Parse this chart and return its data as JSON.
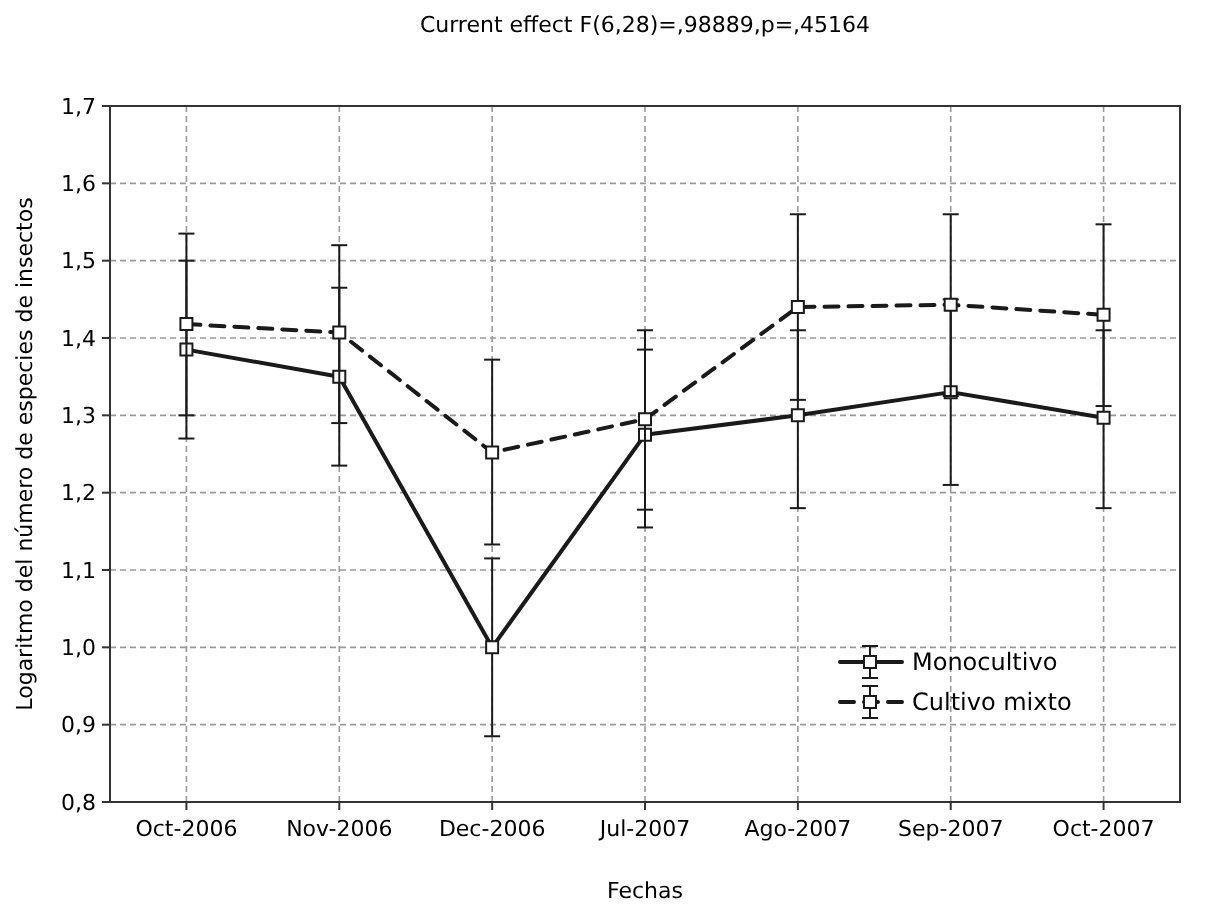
{
  "chart_data": {
    "type": "line",
    "title": "Current effect F(6,28)=,98889,p=,45164",
    "xlabel": "Fechas",
    "ylabel": "Logaritmo del número de especies de insectos",
    "categories": [
      "Oct-2006",
      "Nov-2006",
      "Dec-2006",
      "Jul-2007",
      "Ago-2007",
      "Sep-2007",
      "Oct-2007"
    ],
    "series": [
      {
        "name": "Monocultivo",
        "color": "#1a1a1a",
        "line_style": "solid",
        "values": [
          1.385,
          1.35,
          1.0,
          1.275,
          1.3,
          1.33,
          1.297
        ],
        "errors": [
          [
            1.27,
            1.5
          ],
          [
            1.235,
            1.465
          ],
          [
            0.885,
            1.115
          ],
          [
            1.155,
            1.385
          ],
          [
            1.18,
            1.41
          ],
          [
            1.21,
            1.45
          ],
          [
            1.18,
            1.41
          ]
        ]
      },
      {
        "name": "Cultivo mixto",
        "color": "#1a1a1a",
        "line_style": "dashed",
        "values": [
          1.418,
          1.407,
          1.252,
          1.295,
          1.44,
          1.443,
          1.43
        ],
        "errors": [
          [
            1.3,
            1.535
          ],
          [
            1.29,
            1.52
          ],
          [
            1.133,
            1.372
          ],
          [
            1.178,
            1.41
          ],
          [
            1.32,
            1.56
          ],
          [
            1.325,
            1.56
          ],
          [
            1.312,
            1.547
          ]
        ]
      }
    ],
    "ylim": [
      0.8,
      1.7
    ],
    "yticks": [
      {
        "value": 0.8,
        "label": "0,8"
      },
      {
        "value": 0.9,
        "label": "0,9"
      },
      {
        "value": 1.0,
        "label": "1,0"
      },
      {
        "value": 1.1,
        "label": "1,1"
      },
      {
        "value": 1.2,
        "label": "1,2"
      },
      {
        "value": 1.3,
        "label": "1,3"
      },
      {
        "value": 1.4,
        "label": "1,4"
      },
      {
        "value": 1.5,
        "label": "1,5"
      },
      {
        "value": 1.6,
        "label": "1,6"
      },
      {
        "value": 1.7,
        "label": "1,7"
      }
    ],
    "grid": true,
    "legend": "bottom right",
    "marker": "square"
  }
}
